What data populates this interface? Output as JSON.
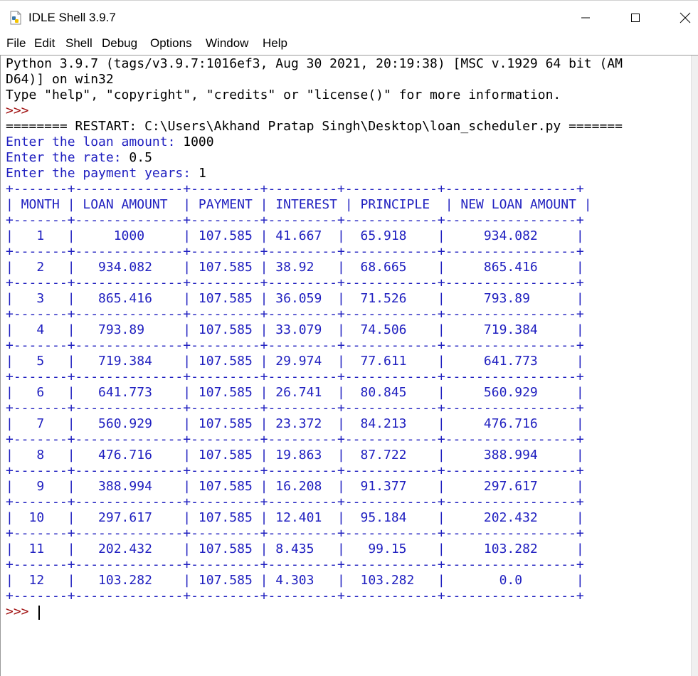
{
  "window": {
    "title": "IDLE Shell 3.9.7",
    "minimize_symbol": "—",
    "maximize_symbol": "☐",
    "close_symbol": "✕"
  },
  "menu": [
    "File",
    "Edit",
    "Shell",
    "Debug",
    "Options",
    "Window",
    "Help"
  ],
  "console": {
    "banner": [
      "Python 3.9.7 (tags/v3.9.7:1016ef3, Aug 30 2021, 20:19:38) [MSC v.1929 64 bit (AM",
      "D64)] on win32",
      "Type \"help\", \"copyright\", \"credits\" or \"license()\" for more information."
    ],
    "prompt": ">>>",
    "restart": "======== RESTART: C:\\Users\\Akhand Pratap Singh\\Desktop\\loan_scheduler.py =======",
    "inputs": [
      {
        "label": "Enter the loan amount: ",
        "value": "1000"
      },
      {
        "label": "Enter the rate: ",
        "value": "0.5"
      },
      {
        "label": "Enter the payment years: ",
        "value": "1"
      }
    ],
    "table_lines": [
      "+-------+--------------+---------+---------+------------+-----------------+",
      "| MONTH | LOAN AMOUNT  | PAYMENT | INTEREST | PRINCIPLE  | NEW LOAN AMOUNT |",
      "+-------+--------------+---------+---------+------------+-----------------+",
      "|   1   |     1000     | 107.585 | 41.667  |  65.918    |     934.082     |",
      "+-------+--------------+---------+---------+------------+-----------------+",
      "|   2   |   934.082    | 107.585 | 38.92   |  68.665    |     865.416     |",
      "+-------+--------------+---------+---------+------------+-----------------+",
      "|   3   |   865.416    | 107.585 | 36.059  |  71.526    |     793.89      |",
      "+-------+--------------+---------+---------+------------+-----------------+",
      "|   4   |   793.89     | 107.585 | 33.079  |  74.506    |     719.384     |",
      "+-------+--------------+---------+---------+------------+-----------------+",
      "|   5   |   719.384    | 107.585 | 29.974  |  77.611    |     641.773     |",
      "+-------+--------------+---------+---------+------------+-----------------+",
      "|   6   |   641.773    | 107.585 | 26.741  |  80.845    |     560.929     |",
      "+-------+--------------+---------+---------+------------+-----------------+",
      "|   7   |   560.929    | 107.585 | 23.372  |  84.213    |     476.716     |",
      "+-------+--------------+---------+---------+------------+-----------------+",
      "|   8   |   476.716    | 107.585 | 19.863  |  87.722    |     388.994     |",
      "+-------+--------------+---------+---------+------------+-----------------+",
      "|   9   |   388.994    | 107.585 | 16.208  |  91.377    |     297.617     |",
      "+-------+--------------+---------+---------+------------+-----------------+",
      "|  10   |   297.617    | 107.585 | 12.401  |  95.184    |     202.432     |",
      "+-------+--------------+---------+---------+------------+-----------------+",
      "|  11   |   202.432    | 107.585 | 8.435   |   99.15    |     103.282     |",
      "+-------+--------------+---------+---------+------------+-----------------+",
      "|  12   |   103.282    | 107.585 | 4.303   |  103.282   |       0.0       |",
      "+-------+--------------+---------+---------+------------+-----------------+"
    ]
  },
  "colors": {
    "output": "#2020c0",
    "prompt": "#a01010",
    "text": "#000000"
  }
}
